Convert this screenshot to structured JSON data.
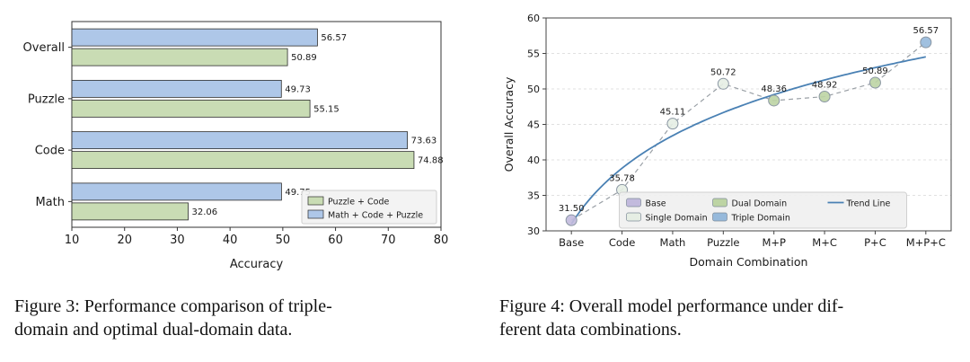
{
  "figure3": {
    "caption_lines": [
      "Figure 3: Performance comparison of triple-",
      "domain and optimal dual-domain data."
    ]
  },
  "figure4": {
    "caption_lines": [
      "Figure 4: Overall model performance under dif-",
      "ferent data combinations."
    ]
  },
  "chart_data": [
    {
      "type": "bar",
      "orientation": "horizontal",
      "xlabel": "Accuracy",
      "xlim": [
        10,
        80
      ],
      "xticks": [
        10,
        20,
        30,
        40,
        50,
        60,
        70,
        80
      ],
      "categories": [
        "Overall",
        "Puzzle",
        "Code",
        "Math"
      ],
      "series": [
        {
          "name": "Math + Code + Puzzle",
          "color": "#aec7e8",
          "values": [
            56.57,
            49.73,
            73.63,
            49.75
          ]
        },
        {
          "name": "Puzzle + Code",
          "color": "#c9dcb4",
          "values": [
            50.89,
            55.15,
            74.88,
            32.06
          ]
        }
      ],
      "legend": [
        "Puzzle + Code",
        "Math + Code + Puzzle"
      ],
      "legend_position": "lower right",
      "bar_edge_color": "#2b2b2b",
      "grid": "off"
    },
    {
      "type": "line",
      "xlabel": "Domain Combination",
      "ylabel": "Overall Accuracy",
      "ylim": [
        30,
        60
      ],
      "yticks": [
        30,
        35,
        40,
        45,
        50,
        55,
        60
      ],
      "x": [
        "Base",
        "Code",
        "Math",
        "Puzzle",
        "M+P",
        "M+C",
        "P+C",
        "M+P+C"
      ],
      "values": [
        31.5,
        35.78,
        45.11,
        50.72,
        48.36,
        48.92,
        50.89,
        56.57
      ],
      "point_groups": [
        "Base",
        "Single Domain",
        "Single Domain",
        "Single Domain",
        "Dual Domain",
        "Dual Domain",
        "Dual Domain",
        "Triple Domain"
      ],
      "group_colors": {
        "Base": "#c2badd",
        "Single Domain": "#e6eee4",
        "Dual Domain": "#bdd4a4",
        "Triple Domain": "#96b9db"
      },
      "legend": [
        {
          "label": "Base",
          "type": "patch"
        },
        {
          "label": "Single Domain",
          "type": "patch"
        },
        {
          "label": "Dual Domain",
          "type": "patch"
        },
        {
          "label": "Triple Domain",
          "type": "patch"
        },
        {
          "label": "Trend Line",
          "type": "line"
        }
      ],
      "trend_color": "#4a81b4",
      "connector_color": "#9aa0a6",
      "connector_style": "dashed",
      "grid": "horizontal-dashed",
      "legend_position": "lower center"
    }
  ]
}
